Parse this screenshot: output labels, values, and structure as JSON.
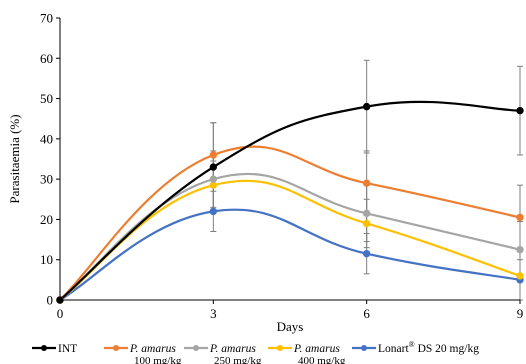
{
  "chart_data": {
    "type": "line",
    "title": "",
    "xlabel": "Days",
    "ylabel": "Parasitaemia (%)",
    "x": [
      0,
      3,
      6,
      9
    ],
    "xlim": [
      0,
      9
    ],
    "ylim": [
      0,
      70
    ],
    "x_ticks": [
      "0",
      "3",
      "6",
      "9"
    ],
    "y_ticks": [
      "0",
      "10",
      "20",
      "30",
      "40",
      "50",
      "60",
      "70"
    ],
    "smooth": true,
    "grid": false,
    "legend_position": "bottom",
    "series": [
      {
        "name": "INT",
        "color": "#000000",
        "values": [
          0,
          33,
          48,
          47
        ],
        "error": [
          0,
          11,
          11.5,
          11
        ]
      },
      {
        "name": "P. amarus 100 mg/kg",
        "name_italic": "P. amarus",
        "name_rest": "100 mg/kg",
        "color": "#ed7d31",
        "values": [
          0,
          36,
          29,
          20.5
        ],
        "error": [
          0,
          8,
          8,
          8
        ]
      },
      {
        "name": "P. amarus 250 mg/kg",
        "name_italic": "P. amarus",
        "name_rest": "250 mg/kg",
        "color": "#a5a5a5",
        "values": [
          0,
          30,
          21.5,
          12.5
        ],
        "error": [
          0,
          7,
          7,
          7
        ]
      },
      {
        "name": "P. amarus 400 mg/kg",
        "name_italic": "P. amarus",
        "name_rest": "400 mg/kg",
        "color": "#ffc000",
        "values": [
          0,
          28.5,
          19,
          6
        ],
        "error": [
          0,
          6,
          6,
          6
        ]
      },
      {
        "name": "Lonart® DS 20 mg/kg",
        "name_main": "Lonart",
        "name_sup": "®",
        "name_rest": " DS 20 mg/kg",
        "color": "#4472c4",
        "values": [
          0,
          22,
          11.5,
          5
        ],
        "error": [
          0,
          5,
          5,
          5
        ]
      }
    ]
  }
}
